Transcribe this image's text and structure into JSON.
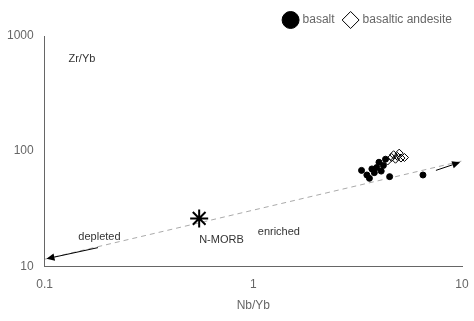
{
  "chart_data": {
    "type": "scatter",
    "log": true,
    "xlabel": "Nb/Yb",
    "xlim": [
      0.1,
      10
    ],
    "ylim": [
      10,
      1000
    ],
    "xticks": [
      0.1,
      1,
      10
    ],
    "yticks": [
      10,
      100,
      1000
    ],
    "grid": false,
    "legend": "upper right",
    "series": [
      {
        "name": "basalt",
        "color": "#000000",
        "marker": "circle",
        "x": [
          3.3,
          3.5,
          3.6,
          3.7,
          3.8,
          3.9,
          4.0,
          4.1,
          4.2,
          4.3,
          4.5,
          6.5
        ],
        "values": [
          68,
          62,
          58,
          70,
          65,
          72,
          80,
          67,
          75,
          85,
          60,
          62
        ]
      },
      {
        "name": "basaltic andesite",
        "color": "#000000",
        "marker": "diamond",
        "x": [
          4.4,
          4.6,
          4.7,
          4.8,
          4.9,
          5.0,
          5.1,
          5.3
        ],
        "values": [
          82,
          88,
          93,
          85,
          90,
          96,
          87,
          88
        ]
      }
    ],
    "reference_point": {
      "x": 0.55,
      "y": 26,
      "color": "#000000",
      "marker": "star"
    },
    "trend_line": {
      "x": [
        0.1,
        10.0
      ],
      "values": [
        11.5,
        82
      ],
      "color": "#aaaaaa",
      "line_style": "dashed"
    },
    "arrows": [
      {
        "x": [
          7.5,
          9.8
        ],
        "y": [
          68,
          80
        ]
      },
      {
        "x": [
          0.18,
          0.102
        ],
        "y": [
          14.5,
          11.6
        ]
      }
    ],
    "annotations": [
      {
        "text": "N-MORB",
        "x": 0.55,
        "y": 19
      },
      {
        "text": "depleted",
        "x": 0.145,
        "y": 20
      },
      {
        "text": "enriched",
        "x": 1.05,
        "y": 22
      },
      {
        "text": "Zr/Yb",
        "x": 0.13,
        "y": 700
      }
    ]
  }
}
